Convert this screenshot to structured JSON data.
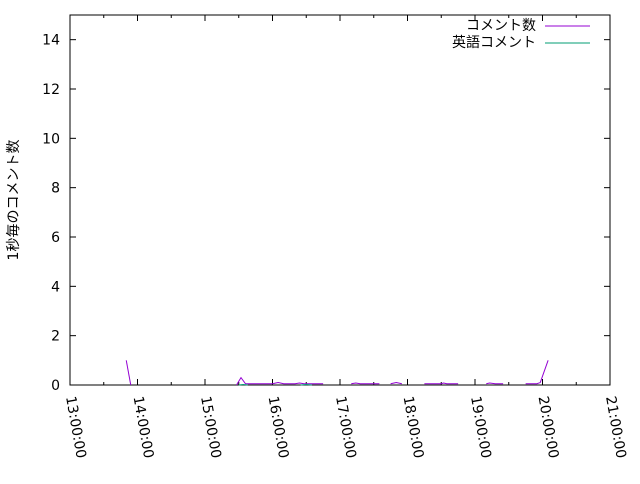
{
  "chart_data": {
    "type": "line",
    "title": "",
    "xlabel": "",
    "ylabel": "1秒毎のコメント数",
    "xlim": [
      "13:00:00",
      "21:00:00"
    ],
    "ylim": [
      0,
      15
    ],
    "x_ticks": [
      "13:00:00",
      "14:00:00",
      "15:00:00",
      "16:00:00",
      "17:00:00",
      "18:00:00",
      "19:00:00",
      "20:00:00",
      "21:00:00"
    ],
    "y_ticks": [
      "0",
      "2",
      "4",
      "6",
      "8",
      "10",
      "12",
      "14"
    ],
    "grid": false,
    "legend": "top-right",
    "series": [
      {
        "name": "コメント数",
        "color": "#9400d3",
        "points": [
          [
            "13:50",
            1
          ],
          [
            "13:54",
            0
          ],
          null,
          [
            "15:28",
            0
          ],
          [
            "15:32",
            0.3
          ],
          [
            "15:36",
            0.05
          ],
          [
            "16:00",
            0.05
          ],
          [
            "16:05",
            0.1
          ],
          [
            "16:10",
            0.05
          ],
          [
            "16:20",
            0.05
          ],
          [
            "16:24",
            0.08
          ],
          [
            "16:28",
            0.05
          ],
          [
            "16:45",
            0.05
          ],
          null,
          [
            "17:10",
            0.05
          ],
          [
            "17:14",
            0.08
          ],
          [
            "17:18",
            0.05
          ],
          [
            "17:35",
            0.05
          ],
          null,
          [
            "17:45",
            0.05
          ],
          [
            "17:50",
            0.1
          ],
          [
            "17:55",
            0.05
          ],
          null,
          [
            "18:15",
            0.05
          ],
          [
            "18:30",
            0.05
          ],
          [
            "18:32",
            0.08
          ],
          [
            "18:35",
            0.05
          ],
          [
            "18:45",
            0.05
          ],
          null,
          [
            "19:10",
            0.05
          ],
          [
            "19:13",
            0.08
          ],
          [
            "19:18",
            0.05
          ],
          [
            "19:25",
            0.05
          ],
          null,
          [
            "19:45",
            0.05
          ],
          [
            "19:55",
            0.05
          ],
          [
            "19:58",
            0.1
          ],
          [
            "20:05",
            1
          ]
        ]
      },
      {
        "name": "英語コメント",
        "color": "#009e73",
        "points": [
          [
            "15:30",
            0
          ],
          [
            "15:34",
            0.02
          ],
          [
            "15:38",
            0
          ],
          null,
          [
            "16:25",
            0
          ],
          [
            "16:30",
            0.02
          ],
          [
            "16:35",
            0
          ]
        ]
      }
    ]
  }
}
